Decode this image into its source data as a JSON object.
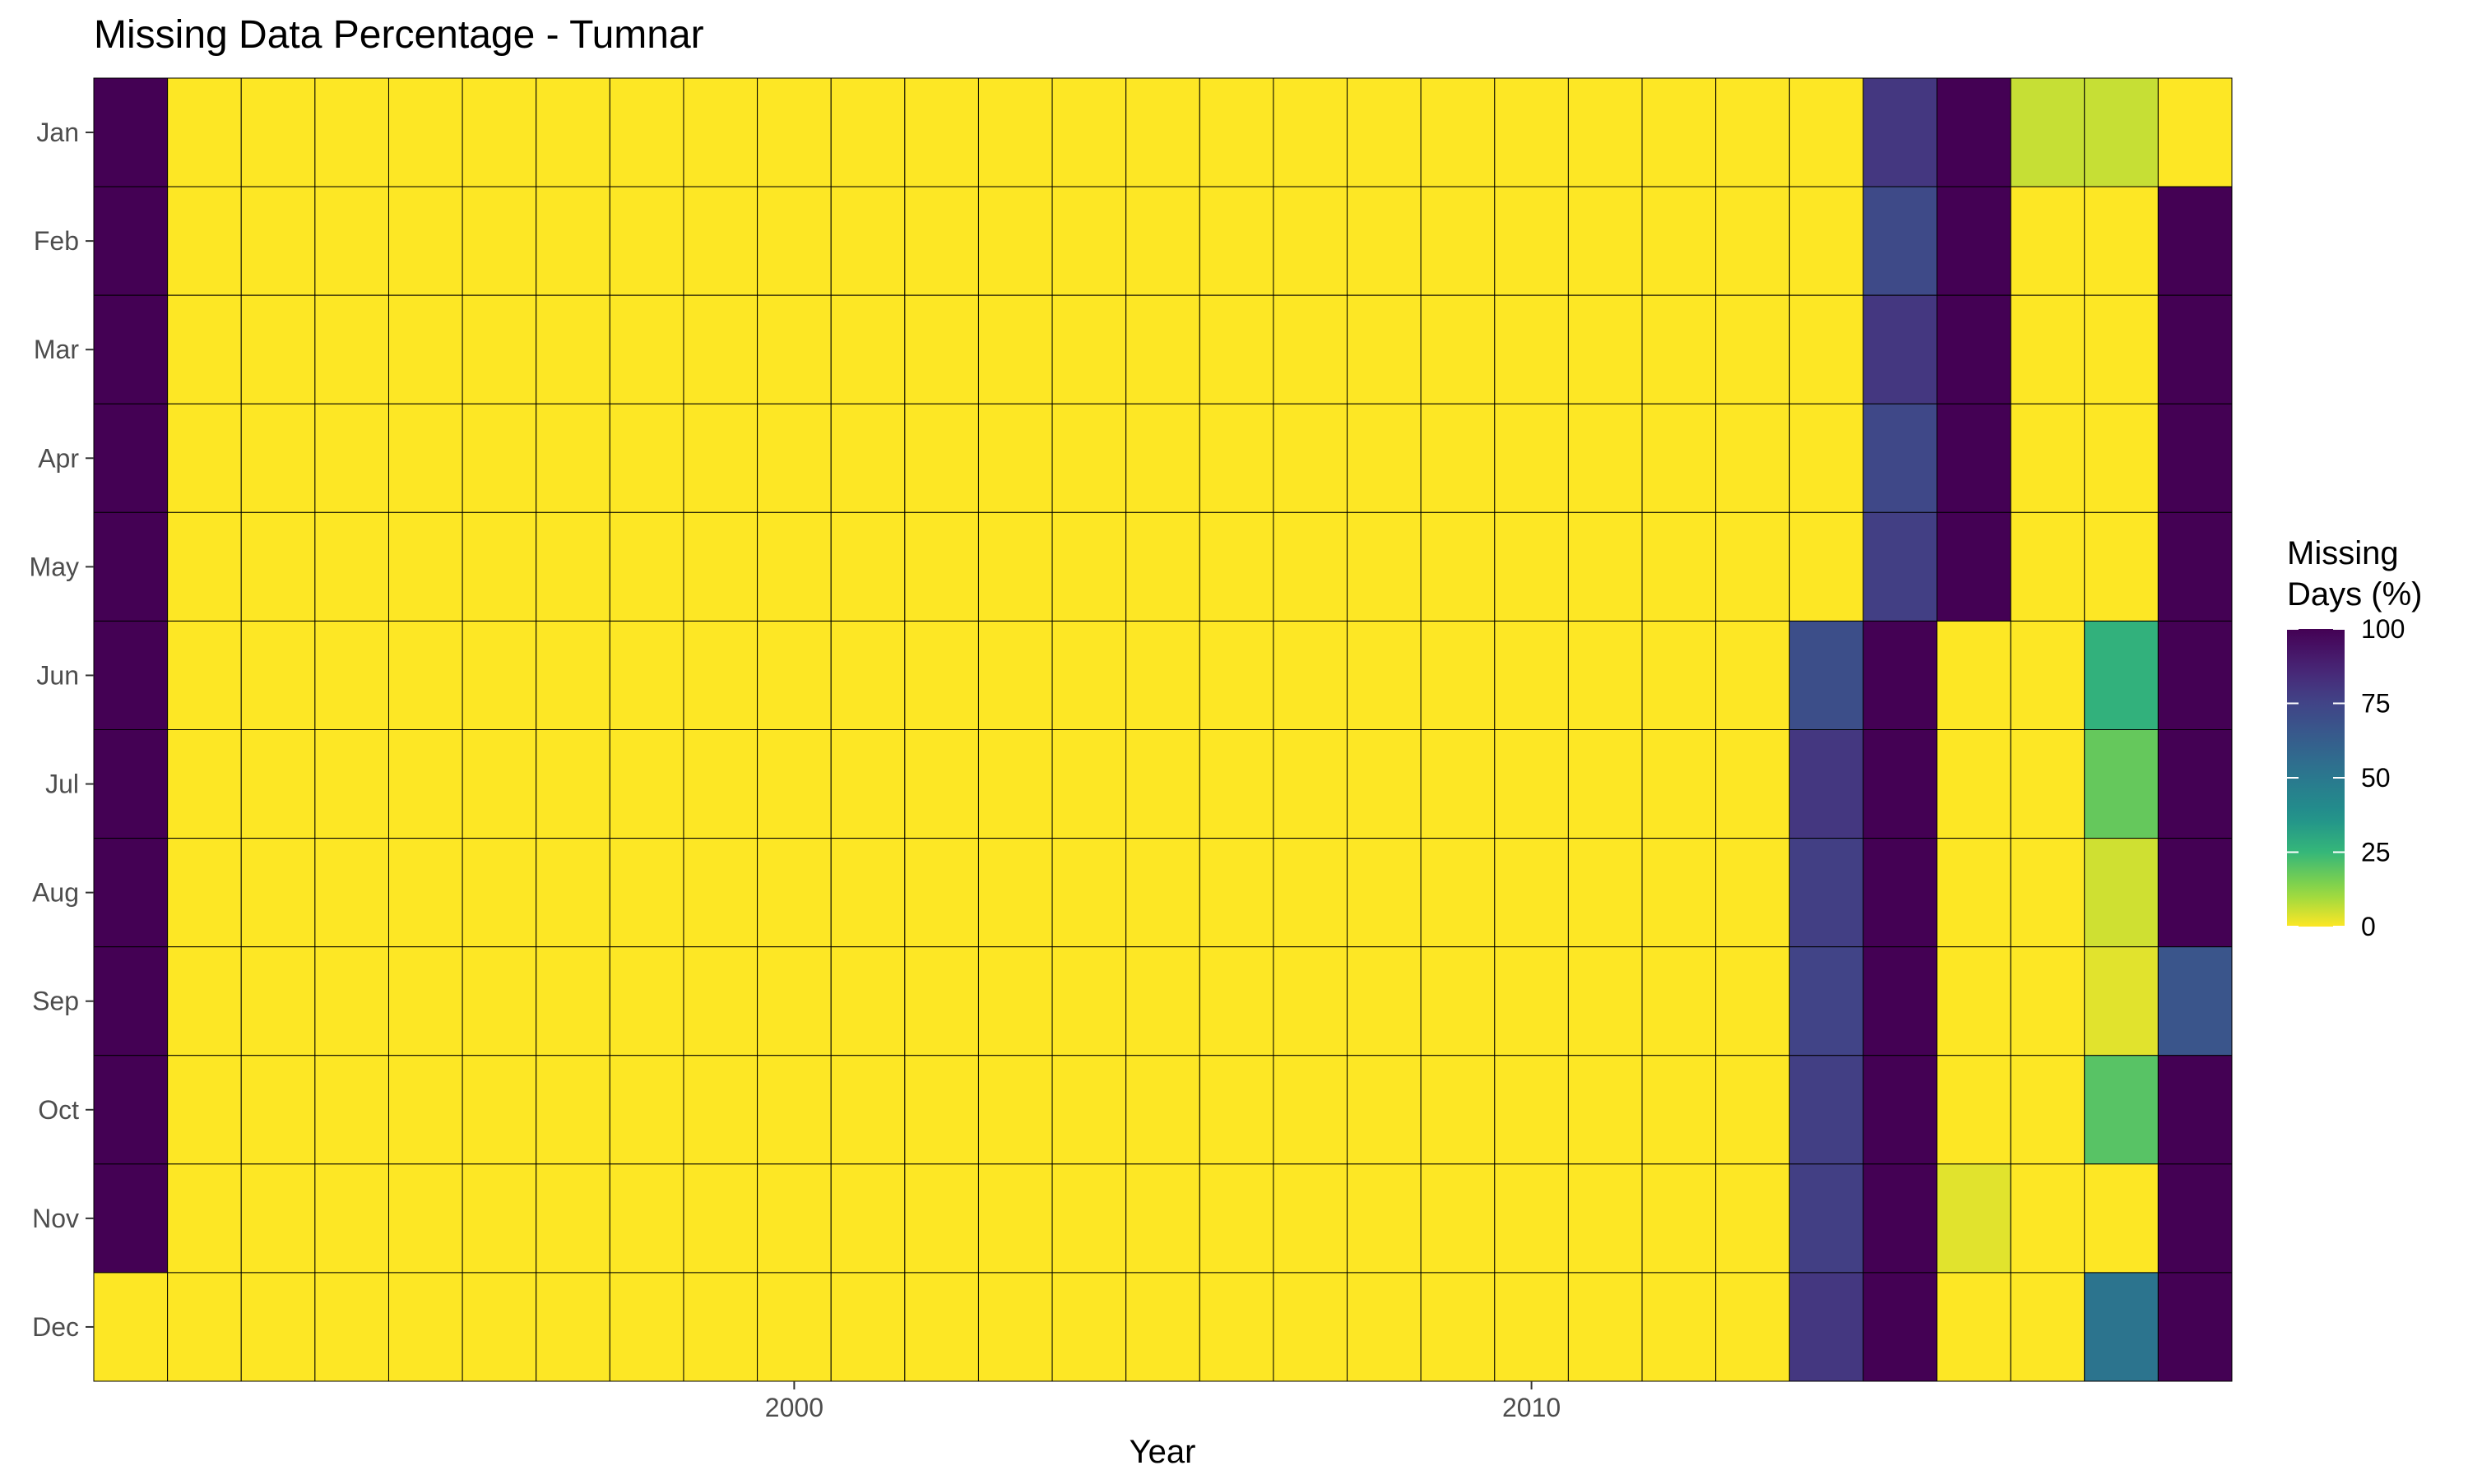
{
  "chart_data": {
    "type": "heatmap",
    "title": "Missing Data Percentage - Tumnar",
    "xlabel": "Year",
    "ylabel": "",
    "x": [
      1991,
      1992,
      1993,
      1994,
      1995,
      1996,
      1997,
      1998,
      1999,
      2000,
      2001,
      2002,
      2003,
      2004,
      2005,
      2006,
      2007,
      2008,
      2009,
      2010,
      2011,
      2012,
      2013,
      2014,
      2015,
      2016,
      2017,
      2018,
      2019
    ],
    "y": [
      "Jan",
      "Feb",
      "Mar",
      "Apr",
      "May",
      "Jun",
      "Jul",
      "Aug",
      "Sep",
      "Oct",
      "Nov",
      "Dec"
    ],
    "x_ticks": [
      2000,
      2010
    ],
    "legend": {
      "title": "Missing\nDays (%)",
      "ticks": [
        0,
        25,
        50,
        75,
        100
      ],
      "range": [
        0,
        100
      ],
      "palette": "viridis (reversed: 0 = yellow, 100 = dark purple)",
      "position": "right"
    },
    "values": [
      [
        100,
        0,
        0,
        0,
        0,
        0,
        0,
        0,
        0,
        0,
        0,
        0,
        0,
        0,
        0,
        0,
        0,
        0,
        0,
        0,
        0,
        0,
        0,
        0,
        80,
        100,
        6,
        6,
        0
      ],
      [
        100,
        0,
        0,
        0,
        0,
        0,
        0,
        0,
        0,
        0,
        0,
        0,
        0,
        0,
        0,
        0,
        0,
        0,
        0,
        0,
        0,
        0,
        0,
        0,
        72,
        100,
        0,
        0,
        100
      ],
      [
        100,
        0,
        0,
        0,
        0,
        0,
        0,
        0,
        0,
        0,
        0,
        0,
        0,
        0,
        0,
        0,
        0,
        0,
        0,
        0,
        0,
        0,
        0,
        0,
        80,
        100,
        0,
        0,
        100
      ],
      [
        100,
        0,
        0,
        0,
        0,
        0,
        0,
        0,
        0,
        0,
        0,
        0,
        0,
        0,
        0,
        0,
        0,
        0,
        0,
        0,
        0,
        0,
        0,
        0,
        73,
        100,
        0,
        0,
        100
      ],
      [
        100,
        0,
        0,
        0,
        0,
        0,
        0,
        0,
        0,
        0,
        0,
        0,
        0,
        0,
        0,
        0,
        0,
        0,
        0,
        0,
        0,
        0,
        0,
        0,
        77,
        100,
        0,
        0,
        100
      ],
      [
        100,
        0,
        0,
        0,
        0,
        0,
        0,
        0,
        0,
        0,
        0,
        0,
        0,
        0,
        0,
        0,
        0,
        0,
        0,
        0,
        0,
        0,
        0,
        70,
        100,
        0,
        0,
        27,
        100
      ],
      [
        100,
        0,
        0,
        0,
        0,
        0,
        0,
        0,
        0,
        0,
        0,
        0,
        0,
        0,
        0,
        0,
        0,
        0,
        0,
        0,
        0,
        0,
        0,
        80,
        100,
        0,
        0,
        18,
        100
      ],
      [
        100,
        0,
        0,
        0,
        0,
        0,
        0,
        0,
        0,
        0,
        0,
        0,
        0,
        0,
        0,
        0,
        0,
        0,
        0,
        0,
        0,
        0,
        0,
        77,
        100,
        0,
        0,
        5,
        100
      ],
      [
        100,
        0,
        0,
        0,
        0,
        0,
        0,
        0,
        0,
        0,
        0,
        0,
        0,
        0,
        0,
        0,
        0,
        0,
        0,
        0,
        0,
        0,
        0,
        75,
        100,
        0,
        0,
        3,
        67
      ],
      [
        100,
        0,
        0,
        0,
        0,
        0,
        0,
        0,
        0,
        0,
        0,
        0,
        0,
        0,
        0,
        0,
        0,
        0,
        0,
        0,
        0,
        0,
        0,
        77,
        100,
        0,
        0,
        20,
        100
      ],
      [
        100,
        0,
        0,
        0,
        0,
        0,
        0,
        0,
        0,
        0,
        0,
        0,
        0,
        0,
        0,
        0,
        0,
        0,
        0,
        0,
        0,
        0,
        0,
        77,
        100,
        3,
        0,
        0,
        100
      ],
      [
        0,
        0,
        0,
        0,
        0,
        0,
        0,
        0,
        0,
        0,
        0,
        0,
        0,
        0,
        0,
        0,
        0,
        0,
        0,
        0,
        0,
        0,
        0,
        80,
        100,
        0,
        0,
        52,
        100
      ]
    ]
  }
}
